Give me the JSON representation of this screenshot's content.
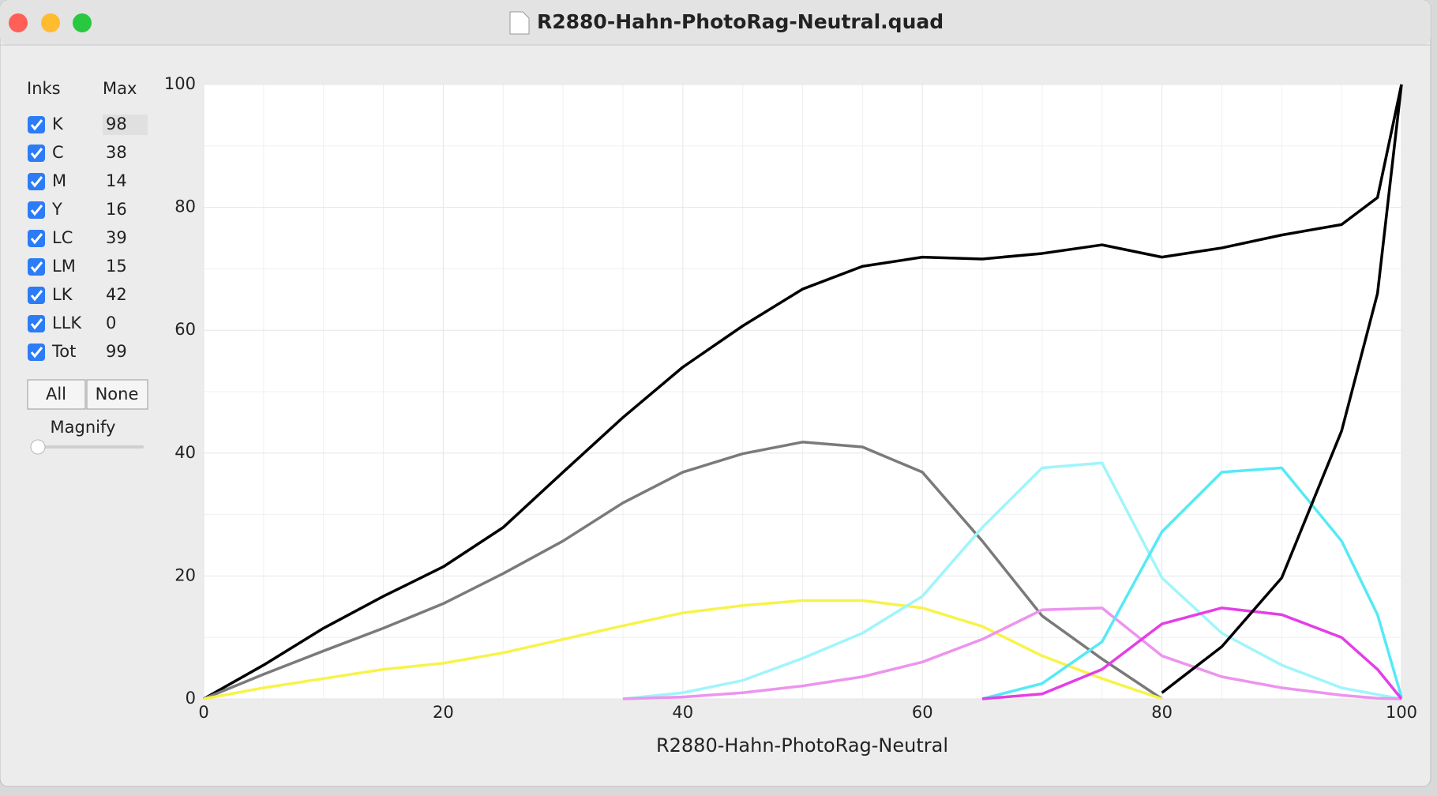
{
  "window": {
    "title": "R2880-Hahn-PhotoRag-Neutral.quad"
  },
  "inks": {
    "header": [
      "Inks",
      "Max"
    ],
    "rows": [
      [
        "K",
        98
      ],
      [
        "C",
        38
      ],
      [
        "M",
        14
      ],
      [
        "Y",
        16
      ],
      [
        "LC",
        39
      ],
      [
        "LM",
        15
      ],
      [
        "LK",
        42
      ],
      [
        "LLK",
        0
      ],
      [
        "Tot",
        99
      ]
    ]
  },
  "buttons": [
    "All",
    "None"
  ],
  "magnify": {
    "label": "Magnify"
  },
  "chart_data": {
    "type": "line",
    "xlabel": "R2880-Hahn-PhotoRag-Neutral",
    "x": [
      0,
      5,
      10,
      15,
      20,
      25,
      30,
      35,
      40,
      45,
      50,
      55,
      60,
      65,
      70,
      75,
      80,
      85,
      90,
      95,
      98,
      100
    ],
    "xlim": [
      0,
      100
    ],
    "xticks": [
      0,
      20,
      40,
      60,
      80,
      100
    ],
    "ylim": [
      0,
      100
    ],
    "yticks": [
      0,
      20,
      40,
      60,
      80,
      100
    ],
    "grid": true,
    "series": [
      {
        "color": "#000000",
        "values": [
          0,
          5.5,
          11.5,
          16.7,
          21.5,
          27.9,
          36.9,
          45.8,
          54,
          60.7,
          66.7,
          70.4,
          71.9,
          71.6,
          72.5,
          73.9,
          71.9,
          73.4,
          75.5,
          77.2,
          81.6,
          100
        ]
      },
      {
        "color": "#7a7a7a",
        "values": [
          0,
          4,
          7.8,
          11.5,
          15.5,
          20.4,
          25.7,
          31.9,
          36.9,
          39.9,
          41.8,
          41,
          36.9,
          25.7,
          13.5,
          6.5,
          0,
          null,
          null,
          null,
          null,
          null
        ]
      },
      {
        "color": "#f7f34a",
        "values": [
          0,
          1.8,
          3.3,
          4.8,
          5.8,
          7.5,
          9.7,
          11.9,
          14,
          15.2,
          16,
          16,
          14.8,
          11.8,
          7,
          3.3,
          0,
          null,
          null,
          null,
          null,
          null
        ]
      },
      {
        "color": "#9ff5fb",
        "values": [
          null,
          null,
          null,
          null,
          null,
          null,
          null,
          0,
          1,
          3,
          6.6,
          10.7,
          16.7,
          27.9,
          37.6,
          38.4,
          19.7,
          10.7,
          5.5,
          1.8,
          0.7,
          0
        ]
      },
      {
        "color": "#ec94ee",
        "values": [
          null,
          null,
          null,
          null,
          null,
          null,
          null,
          0,
          0.3,
          1,
          2.1,
          3.6,
          6,
          9.7,
          14.5,
          14.8,
          7,
          3.6,
          1.8,
          0.6,
          0.1,
          0
        ]
      },
      {
        "color": "#55eaf5",
        "values": [
          null,
          null,
          null,
          null,
          null,
          null,
          null,
          null,
          null,
          null,
          null,
          null,
          null,
          0,
          2.5,
          9.3,
          27.2,
          36.9,
          37.6,
          25.7,
          13.7,
          0.3
        ]
      },
      {
        "color": "#e43ee6",
        "values": [
          null,
          null,
          null,
          null,
          null,
          null,
          null,
          null,
          null,
          null,
          null,
          null,
          null,
          0,
          0.8,
          4.8,
          12.2,
          14.8,
          13.7,
          10,
          4.8,
          0
        ]
      },
      {
        "color": "#000000",
        "values": [
          null,
          null,
          null,
          null,
          null,
          null,
          null,
          null,
          null,
          null,
          null,
          null,
          null,
          null,
          null,
          null,
          1,
          8.5,
          19.7,
          43.6,
          66,
          100
        ]
      }
    ]
  }
}
